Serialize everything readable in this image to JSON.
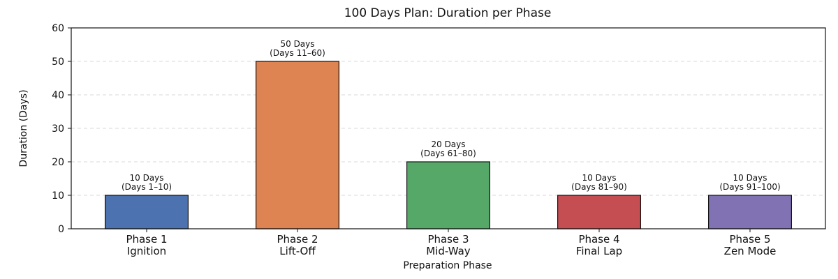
{
  "chart_data": {
    "type": "bar",
    "title": "100 Days Plan: Duration per Phase",
    "xlabel": "Preparation Phase",
    "ylabel": "Duration (Days)",
    "ylim": [
      0,
      60
    ],
    "yticks": [
      "0",
      "10",
      "20",
      "30",
      "40",
      "50",
      "60"
    ],
    "grid": "horizontal dashed",
    "categories": [
      [
        "Phase 1",
        "Ignition"
      ],
      [
        "Phase 2",
        "Lift-Off"
      ],
      [
        "Phase 3",
        "Mid-Way"
      ],
      [
        "Phase 4",
        "Final Lap"
      ],
      [
        "Phase 5",
        "Zen Mode"
      ]
    ],
    "values": [
      10,
      50,
      20,
      10,
      10
    ],
    "data_labels": [
      [
        "10 Days",
        "(Days 1–10)"
      ],
      [
        "50 Days",
        "(Days 11–60)"
      ],
      [
        "20 Days",
        "(Days 61–80)"
      ],
      [
        "10 Days",
        "(Days 81–90)"
      ],
      [
        "10 Days",
        "(Days 91–100)"
      ]
    ],
    "colors": [
      "#4c72b0",
      "#dd8452",
      "#55a868",
      "#c44e52",
      "#8172b3"
    ]
  }
}
